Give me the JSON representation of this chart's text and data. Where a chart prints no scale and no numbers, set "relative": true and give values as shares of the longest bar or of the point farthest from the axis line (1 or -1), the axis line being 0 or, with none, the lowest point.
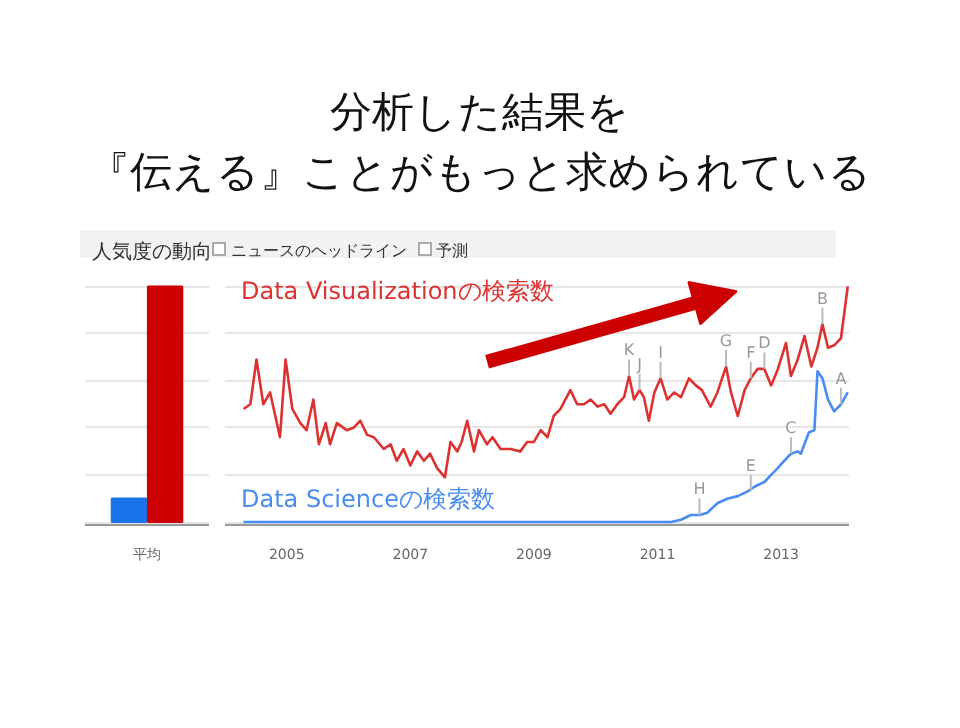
{
  "chart_data": [
    {
      "type": "other",
      "title": "分析した結果を",
      "subtitle": "『伝える』ことがもっと求められている",
      "annotations": [
        "人気度の動向",
        "ニュースのヘッドライン",
        "予測"
      ]
    },
    {
      "type": "bar",
      "relative": true,
      "grid": "y",
      "categories": [
        "平均"
      ],
      "series": [
        {
          "color": "#1a73e8",
          "values": [
            0.1
          ]
        },
        {
          "color": "#cc0000",
          "values": [
            1
          ]
        }
      ]
    },
    {
      "type": "line",
      "relative": true,
      "grid": "y",
      "xlim": [
        2004.0,
        2014.1
      ],
      "xticks": [
        2005,
        2007,
        2009,
        2011,
        2013
      ],
      "series": [
        {
          "name": "Data Visualizationの検索数",
          "color": "#dc3232",
          "x": [
            2004.3,
            2004.41,
            2004.51,
            2004.62,
            2004.73,
            2004.89,
            2004.98,
            2005.09,
            2005.22,
            2005.32,
            2005.43,
            2005.52,
            2005.63,
            2005.7,
            2005.81,
            2005.97,
            2006.08,
            2006.19,
            2006.3,
            2006.41,
            2006.57,
            2006.68,
            2006.78,
            2006.89,
            2007.0,
            2007.11,
            2007.22,
            2007.32,
            2007.43,
            2007.56,
            2007.65,
            2007.76,
            2007.83,
            2007.92,
            2008.03,
            2008.11,
            2008.24,
            2008.33,
            2008.46,
            2008.62,
            2008.78,
            2008.89,
            2009.0,
            2009.11,
            2009.22,
            2009.32,
            2009.43,
            2009.59,
            2009.7,
            2009.81,
            2009.92,
            2010.03,
            2010.14,
            2010.24,
            2010.35,
            2010.46,
            2010.54,
            2010.62,
            2010.71,
            2010.78,
            2010.86,
            2010.95,
            2011.05,
            2011.16,
            2011.27,
            2011.38,
            2011.51,
            2011.62,
            2011.72,
            2011.86,
            2011.97,
            2012.11,
            2012.19,
            2012.3,
            2012.41,
            2012.51,
            2012.62,
            2012.73,
            2012.84,
            2012.95,
            2013.08,
            2013.16,
            2013.27,
            2013.38,
            2013.49,
            2013.59,
            2013.67,
            2013.76,
            2013.86,
            2013.97,
            2014.08
          ],
          "values": [
            0.48,
            0.5,
            0.69,
            0.5,
            0.55,
            0.36,
            0.69,
            0.48,
            0.42,
            0.39,
            0.52,
            0.33,
            0.42,
            0.33,
            0.42,
            0.39,
            0.4,
            0.43,
            0.37,
            0.36,
            0.31,
            0.33,
            0.26,
            0.31,
            0.24,
            0.3,
            0.26,
            0.29,
            0.23,
            0.19,
            0.34,
            0.3,
            0.34,
            0.43,
            0.3,
            0.39,
            0.33,
            0.36,
            0.31,
            0.31,
            0.3,
            0.34,
            0.34,
            0.39,
            0.36,
            0.45,
            0.48,
            0.56,
            0.5,
            0.5,
            0.52,
            0.49,
            0.5,
            0.46,
            0.5,
            0.53,
            0.62,
            0.52,
            0.56,
            0.53,
            0.43,
            0.55,
            0.61,
            0.52,
            0.55,
            0.53,
            0.61,
            0.58,
            0.56,
            0.49,
            0.55,
            0.66,
            0.55,
            0.45,
            0.56,
            0.61,
            0.65,
            0.65,
            0.58,
            0.65,
            0.76,
            0.62,
            0.69,
            0.79,
            0.66,
            0.74,
            0.84,
            0.74,
            0.75,
            0.78,
            1
          ]
        },
        {
          "name": "Data Scienceの検索数",
          "color": "#4a8cf0",
          "x": [
            2004.3,
            2011.22,
            2011.38,
            2011.54,
            2011.68,
            2011.81,
            2011.97,
            2012.14,
            2012.3,
            2012.46,
            2012.57,
            2012.73,
            2012.84,
            2012.95,
            2013.05,
            2013.16,
            2013.27,
            2013.32,
            2013.45,
            2013.54,
            2013.59,
            2013.67,
            2013.76,
            2013.86,
            2013.97,
            2014.08
          ],
          "values": [
            0,
            0,
            0.01,
            0.03,
            0.03,
            0.04,
            0.08,
            0.1,
            0.11,
            0.13,
            0.15,
            0.17,
            0.2,
            0.23,
            0.26,
            0.29,
            0.3,
            0.29,
            0.38,
            0.39,
            0.64,
            0.61,
            0.52,
            0.47,
            0.5,
            0.55
          ]
        }
      ],
      "annotations": [
        {
          "text": "K",
          "x": 2010.54,
          "y": 0.62
        },
        {
          "text": "J",
          "x": 2010.71,
          "y": 0.56
        },
        {
          "text": "I",
          "x": 2011.05,
          "y": 0.61
        },
        {
          "text": "G",
          "x": 2012.11,
          "y": 0.66
        },
        {
          "text": "F",
          "x": 2012.51,
          "y": 0.61
        },
        {
          "text": "D",
          "x": 2012.73,
          "y": 0.65
        },
        {
          "text": "B",
          "x": 2013.67,
          "y": 0.84
        },
        {
          "text": "A",
          "x": 2013.97,
          "y": 0.5
        },
        {
          "text": "C",
          "x": 2013.16,
          "y": 0.29
        },
        {
          "text": "E",
          "x": 2012.51,
          "y": 0.13
        },
        {
          "text": "H",
          "x": 2011.68,
          "y": 0.03
        }
      ]
    }
  ]
}
